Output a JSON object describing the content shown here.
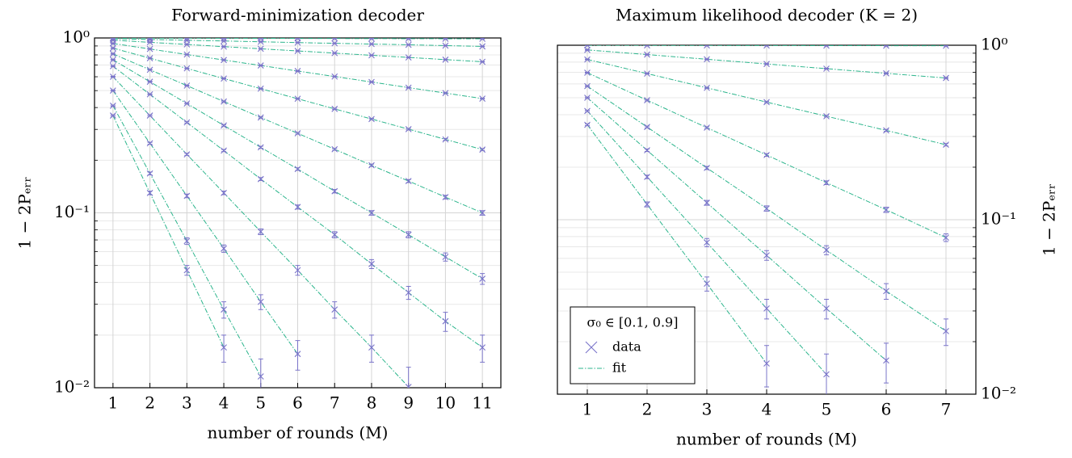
{
  "chart_data": [
    {
      "type": "scatter",
      "title": "Forward-minimization decoder",
      "x_label": "number of rounds (M)",
      "y_label": "1 − 2Pₑᵣᵣ",
      "x": [
        1,
        2,
        3,
        4,
        5,
        6,
        7,
        8,
        9,
        10,
        11
      ],
      "xlim": [
        0.5,
        11.5
      ],
      "xticks": [
        1,
        2,
        3,
        4,
        5,
        6,
        7,
        8,
        9,
        10,
        11
      ],
      "ylim": [
        0.01,
        1
      ],
      "log_y": true,
      "yticks": [
        {
          "value": 0.01,
          "label": "10⁻²"
        },
        {
          "value": 0.1,
          "label": "10⁻¹"
        },
        {
          "value": 1,
          "label": "10⁰"
        }
      ],
      "y_axis_side": "left",
      "grid": true,
      "marker_color": "#7a74c9",
      "fit_color": "#2cb58c",
      "error": 0.003,
      "series": [
        {
          "values": [
            0.999,
            0.998,
            0.997,
            0.996,
            0.995,
            0.994,
            0.993,
            0.992,
            0.991,
            0.99,
            0.989
          ]
        },
        {
          "values": [
            0.99,
            0.98,
            0.97,
            0.961,
            0.951,
            0.941,
            0.932,
            0.923,
            0.914,
            0.904,
            0.895
          ]
        },
        {
          "values": [
            0.972,
            0.944,
            0.918,
            0.892,
            0.867,
            0.843,
            0.819,
            0.796,
            0.774,
            0.752,
            0.731
          ]
        },
        {
          "values": [
            0.93,
            0.865,
            0.804,
            0.748,
            0.696,
            0.647,
            0.602,
            0.56,
            0.52,
            0.484,
            0.45
          ]
        },
        {
          "values": [
            0.875,
            0.766,
            0.67,
            0.586,
            0.513,
            0.449,
            0.393,
            0.344,
            0.301,
            0.263,
            0.23
          ]
        },
        {
          "values": [
            0.811,
            0.658,
            0.534,
            0.433,
            0.351,
            0.285,
            0.231,
            0.187,
            0.152,
            0.123,
            0.1
          ]
        },
        {
          "values": [
            0.75,
            0.562,
            0.422,
            0.316,
            0.237,
            0.178,
            0.133,
            0.1,
            0.075,
            0.056,
            0.042
          ]
        },
        {
          "values": [
            0.69,
            0.476,
            0.329,
            0.227,
            0.156,
            0.108,
            0.075,
            0.051,
            0.035,
            0.024,
            0.017
          ]
        },
        {
          "values": [
            0.6,
            0.36,
            0.216,
            0.13,
            0.078,
            0.047,
            0.028,
            0.017,
            0.0101,
            null,
            null
          ]
        },
        {
          "values": [
            0.5,
            0.25,
            0.125,
            0.0625,
            0.031,
            0.0156,
            null,
            null,
            null,
            null,
            null
          ]
        },
        {
          "values": [
            0.41,
            0.168,
            0.069,
            0.028,
            0.0116,
            null,
            null,
            null,
            null,
            null,
            null
          ]
        },
        {
          "values": [
            0.36,
            0.13,
            0.047,
            0.017,
            null,
            null,
            null,
            null,
            null,
            null,
            null
          ]
        }
      ]
    },
    {
      "type": "scatter",
      "title": "Maximum likelihood decoder (K = 2)",
      "x_label": "number of rounds (M)",
      "y_label": "1 − 2Pₑᵣᵣ",
      "x": [
        1,
        2,
        3,
        4,
        5,
        6,
        7
      ],
      "xlim": [
        0.5,
        7.5
      ],
      "xticks": [
        1,
        2,
        3,
        4,
        5,
        6,
        7
      ],
      "ylim": [
        0.01,
        1
      ],
      "log_y": true,
      "yticks": [
        {
          "value": 0.01,
          "label": "10⁻²"
        },
        {
          "value": 0.1,
          "label": "10⁻¹"
        },
        {
          "value": 1,
          "label": "10⁰"
        }
      ],
      "y_axis_side": "right",
      "grid": true,
      "marker_color": "#7a74c9",
      "fit_color": "#2cb58c",
      "error": 0.004,
      "legend": {
        "title": "σ₀ ∈ [0.1, 0.9]",
        "entries": [
          "data",
          "fit"
        ],
        "position": "lower left"
      },
      "series": [
        {
          "values": [
            0.999,
            0.998,
            0.997,
            0.996,
            0.995,
            0.994,
            0.993
          ]
        },
        {
          "values": [
            0.94,
            0.884,
            0.831,
            0.781,
            0.734,
            0.69,
            0.649
          ]
        },
        {
          "values": [
            0.829,
            0.688,
            0.57,
            0.472,
            0.392,
            0.325,
            0.269
          ]
        },
        {
          "values": [
            0.696,
            0.484,
            0.337,
            0.235,
            0.163,
            0.114,
            0.079
          ]
        },
        {
          "values": [
            0.583,
            0.34,
            0.198,
            0.116,
            0.067,
            0.039,
            0.023
          ]
        },
        {
          "values": [
            0.5,
            0.25,
            0.125,
            0.0625,
            0.031,
            0.0156,
            null
          ]
        },
        {
          "values": [
            0.42,
            0.176,
            0.074,
            0.031,
            0.013,
            null,
            null
          ]
        },
        {
          "values": [
            0.35,
            0.1225,
            0.043,
            0.015,
            null,
            null,
            null
          ]
        }
      ]
    }
  ]
}
